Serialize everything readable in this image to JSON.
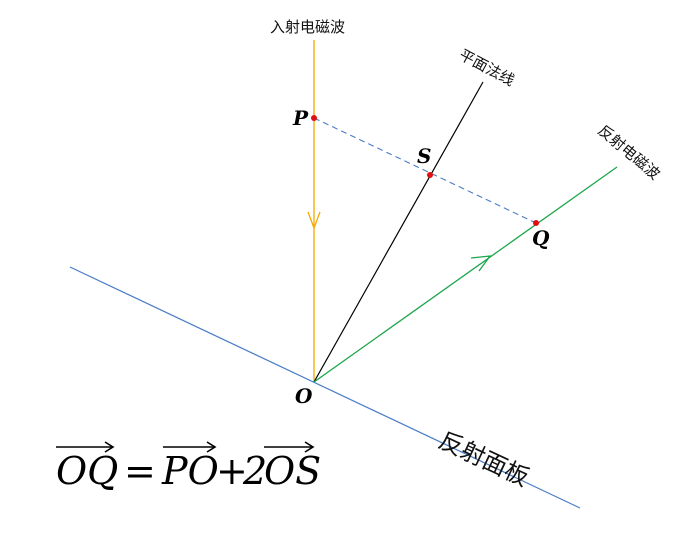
{
  "labels": {
    "incident_wave": "入射电磁波",
    "normal": "平面法线",
    "reflected_wave": "反射电磁波",
    "panel": "反射面板"
  },
  "points": {
    "P": "P",
    "S": "S",
    "Q": "Q",
    "O": "O"
  },
  "formula": {
    "oq": "OQ",
    "eq": "=",
    "po": "PO",
    "plus": "+",
    "coef": "2",
    "os": "OS"
  },
  "colors": {
    "incident": "#f5a800",
    "normal": "#000000",
    "reflected": "#1aa64a",
    "panel": "#4a7cc8",
    "dashed": "#4a7cc8",
    "points": "#e01010"
  }
}
